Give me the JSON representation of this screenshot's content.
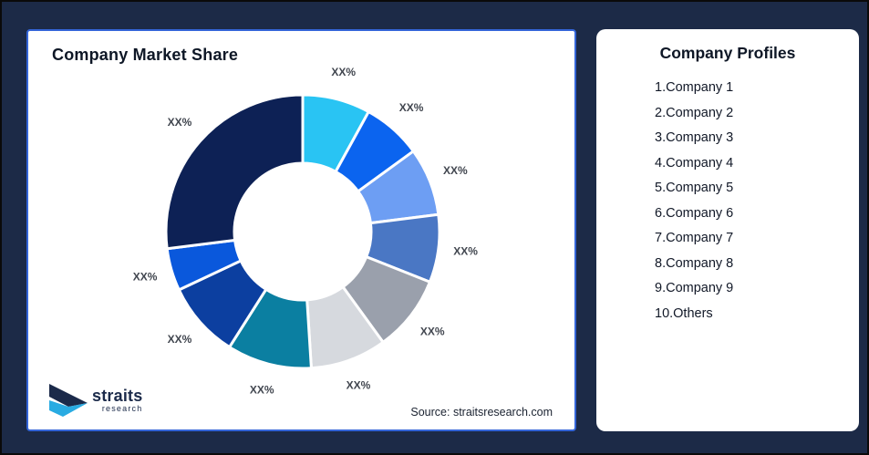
{
  "page": {
    "background_color": "#1C2A47",
    "outer_border_color": "#0a0a0a"
  },
  "left_card": {
    "title": "Company Market Share",
    "source": "Source: straitsresearch.com",
    "border_color": "#3465D8"
  },
  "logo": {
    "name": "straits",
    "sub": "research",
    "navy": "#1B2A4A",
    "cyan": "#29ABE2"
  },
  "right_card": {
    "title": "Company Profiles",
    "items": [
      "1.Company 1",
      "2.Company 2",
      "3.Company 3",
      "4.Company 4",
      "5.Company 5",
      "6.Company 6",
      "7.Company 7",
      "8.Company 8",
      "9.Company 9",
      "10.Others"
    ]
  },
  "chart_data": {
    "type": "pie",
    "donut": true,
    "title": "Company Market Share",
    "start_angle_deg": 0,
    "direction": "clockwise",
    "inner_radius_ratio": 0.5,
    "label_text_color": "#41464F",
    "segment_gap_color": "#ffffff",
    "segments": [
      {
        "name": "Company 1",
        "display_label": "XX%",
        "share_pct_est": 8,
        "color": "#29C4F3"
      },
      {
        "name": "Company 2",
        "display_label": "XX%",
        "share_pct_est": 7,
        "color": "#0B64EF"
      },
      {
        "name": "Company 3",
        "display_label": "XX%",
        "share_pct_est": 8,
        "color": "#6D9EF3"
      },
      {
        "name": "Company 4",
        "display_label": "XX%",
        "share_pct_est": 8,
        "color": "#4A77C4"
      },
      {
        "name": "Company 5",
        "display_label": "XX%",
        "share_pct_est": 9,
        "color": "#9AA0AC"
      },
      {
        "name": "Company 6",
        "display_label": "XX%",
        "share_pct_est": 9,
        "color": "#D6D9DE"
      },
      {
        "name": "Company 7",
        "display_label": "XX%",
        "share_pct_est": 10,
        "color": "#0B7FA1"
      },
      {
        "name": "Company 8",
        "display_label": "XX%",
        "share_pct_est": 9,
        "color": "#0C3FA0"
      },
      {
        "name": "Company 9",
        "display_label": "XX%",
        "share_pct_est": 5,
        "color": "#0A58DC"
      },
      {
        "name": "Others",
        "display_label": "XX%",
        "share_pct_est": 27,
        "color": "#0D2155"
      }
    ]
  }
}
